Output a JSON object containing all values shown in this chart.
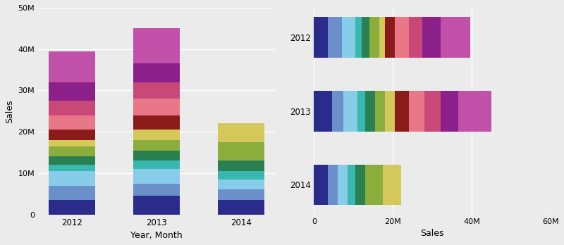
{
  "years": [
    "2012",
    "2013",
    "2014"
  ],
  "seg_colors": [
    "#2b2b8c",
    "#6b8fc8",
    "#87cce8",
    "#38b8b0",
    "#2a8050",
    "#8aad3c",
    "#d4c85a",
    "#8b1a1a",
    "#e87888",
    "#c84878",
    "#8b208b",
    "#c050a8"
  ],
  "segs_2012": [
    3.5,
    3.5,
    3.5,
    1.5,
    2.0,
    2.5,
    1.5,
    2.5,
    3.5,
    3.5,
    4.5,
    7.5
  ],
  "segs_2013": [
    4.5,
    3.0,
    3.5,
    2.0,
    2.5,
    2.5,
    2.5,
    3.5,
    4.0,
    4.0,
    4.5,
    8.5
  ],
  "segs_2014": [
    3.5,
    2.5,
    2.5,
    2.0,
    2.5,
    4.5,
    4.5,
    0,
    0,
    0,
    0,
    0
  ],
  "ylabel": "Sales",
  "xlabel": "Year, Month",
  "xlabel2": "Sales",
  "ytick_labels": [
    "0",
    "10M",
    "20M",
    "30M",
    "40M",
    "50M"
  ],
  "ytick_vals": [
    0,
    10,
    20,
    30,
    40,
    50
  ],
  "xtick_labels2": [
    "0",
    "20M",
    "40M",
    "60M"
  ],
  "xtick_vals2": [
    0,
    20,
    40,
    60
  ],
  "ylim": 50,
  "xlim2": 60,
  "bg_color": "#ebebeb",
  "grid_color": "#ffffff"
}
